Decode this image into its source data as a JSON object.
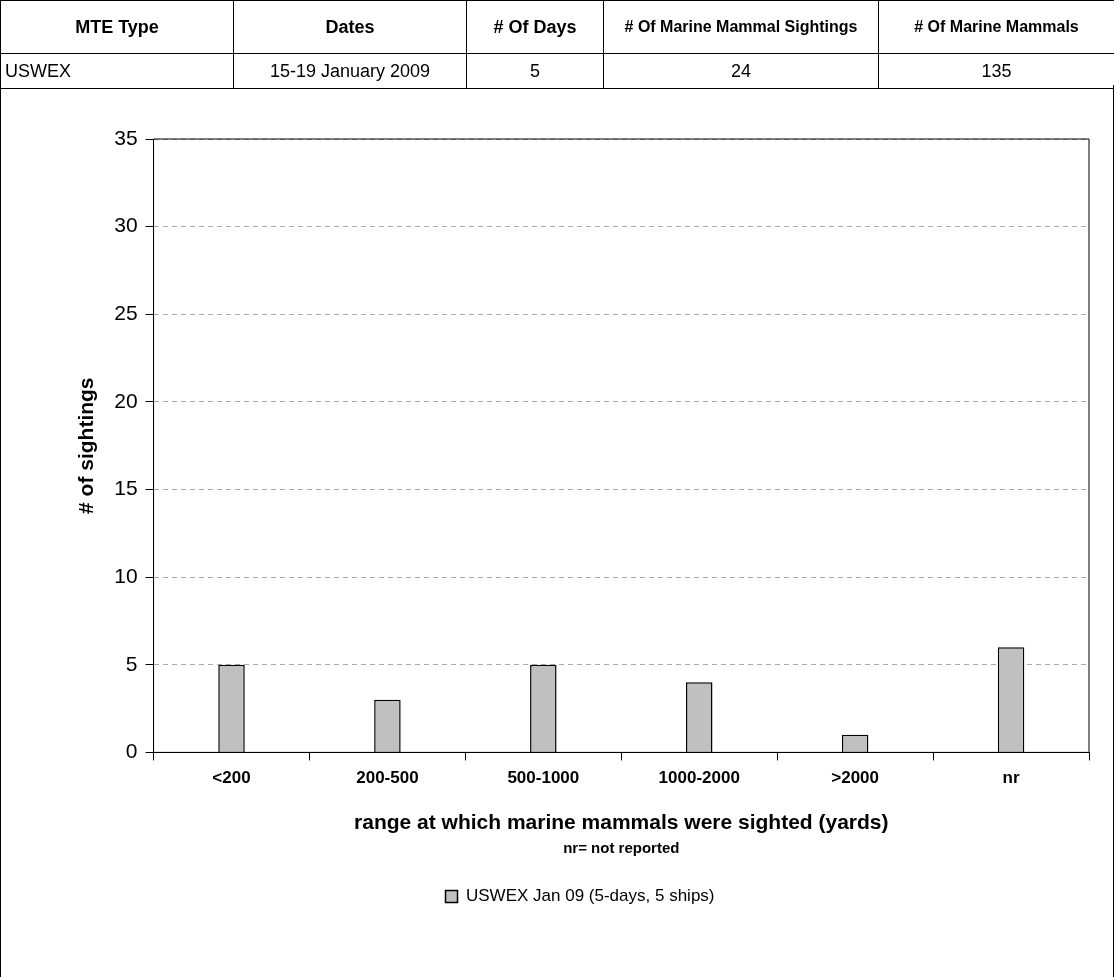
{
  "chart_data": [
    {
      "type": "other",
      "annotations": [
        "MTE Type",
        "Dates",
        "# Of Days",
        "# Of Marine Mammal Sightings",
        "# Of Marine Mammals",
        "USWEX",
        "15-19 January 2009",
        "5",
        "24",
        "135"
      ]
    },
    {
      "type": "bar",
      "categories": [
        "<200",
        "200-500",
        "500-1000",
        "1000-2000",
        ">2000",
        "nr"
      ],
      "series": [
        {
          "name": "USWEX Jan 09 (5-days, 5 ships)",
          "color": "#c0c0c0",
          "values": [
            5,
            3,
            5,
            4,
            1,
            6
          ]
        }
      ],
      "ylim": [
        0,
        35
      ],
      "yticks": [
        0,
        5,
        10,
        15,
        20,
        25,
        30,
        35
      ],
      "xlabel": "range at which marine mammals were sighted (yards)",
      "ylabel": "# of sightings",
      "annotations": [
        "nr= not reported"
      ],
      "grid": "y",
      "legend": "bottom"
    }
  ]
}
